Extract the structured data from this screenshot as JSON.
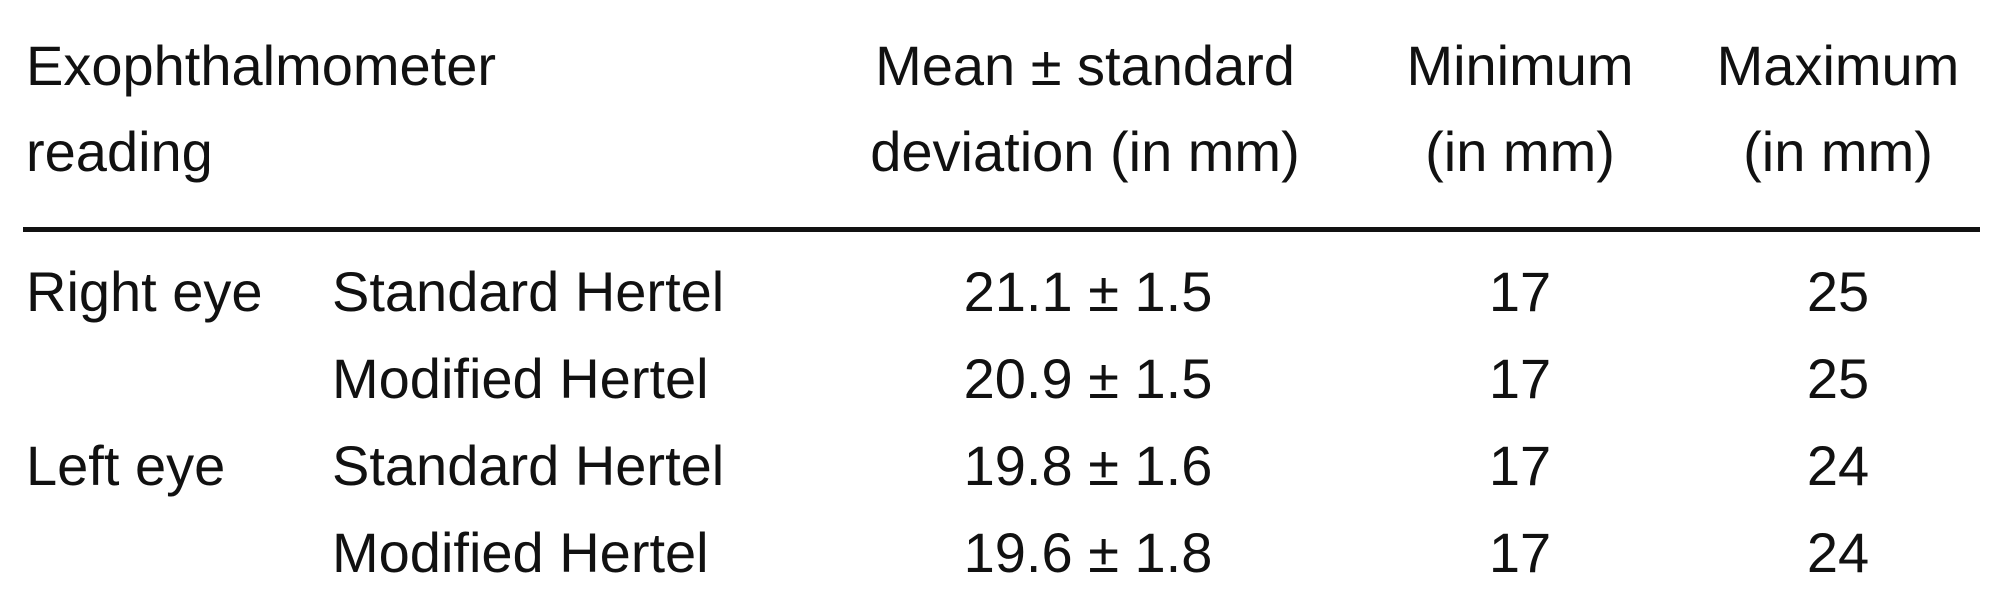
{
  "table": {
    "header": [
      [
        "Exophthalmometer",
        "reading"
      ],
      [
        "Mean ± standard",
        "deviation (in mm)"
      ],
      [
        "Minimum",
        "(in mm)"
      ],
      [
        "Maximum",
        "(in mm)"
      ]
    ],
    "rows": [
      [
        "Right eye",
        "Standard Hertel",
        "21.1 ± 1.5",
        17,
        25
      ],
      [
        null,
        "Modified Hertel",
        "20.9 ± 1.5",
        17,
        25
      ],
      [
        "Left eye",
        "Standard Hertel",
        "19.8 ± 1.6",
        17,
        24
      ],
      [
        null,
        "Modified Hertel",
        "19.6 ± 1.8",
        17,
        24
      ]
    ]
  }
}
